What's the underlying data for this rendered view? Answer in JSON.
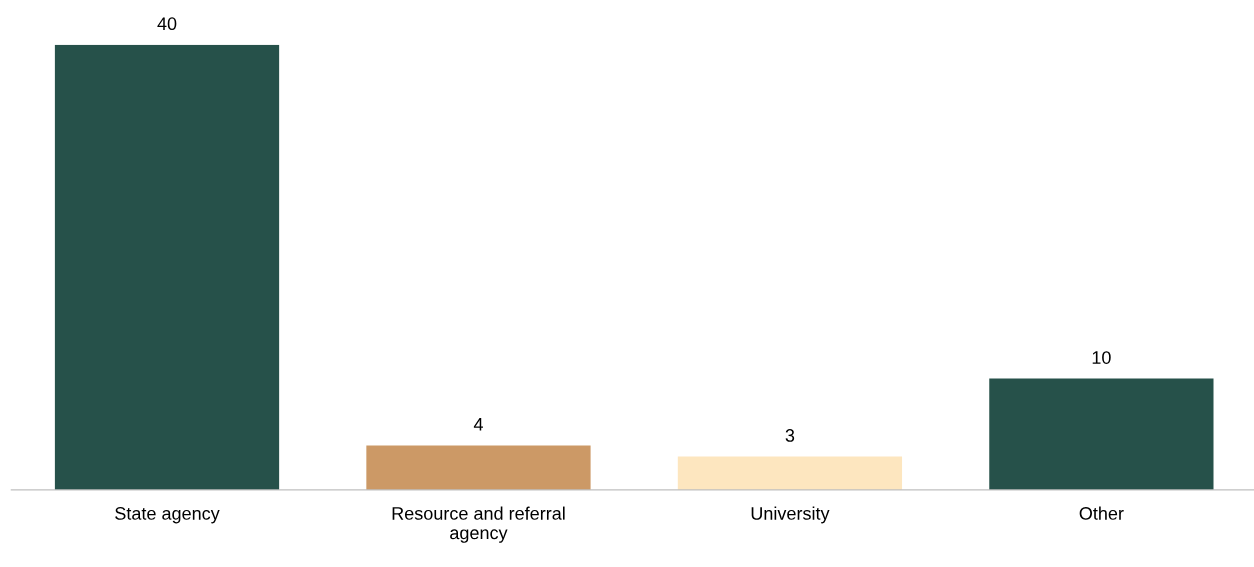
{
  "chart_data": {
    "type": "bar",
    "categories": [
      "State agency",
      "Resource and referral agency",
      "University",
      "Other"
    ],
    "values": [
      40,
      4,
      3,
      10
    ],
    "colors": [
      "#26514a",
      "#cc9966",
      "#fde6bf",
      "#26514a"
    ],
    "data_labels": true,
    "grid": false,
    "legend": false,
    "tick_labels": "x"
  }
}
